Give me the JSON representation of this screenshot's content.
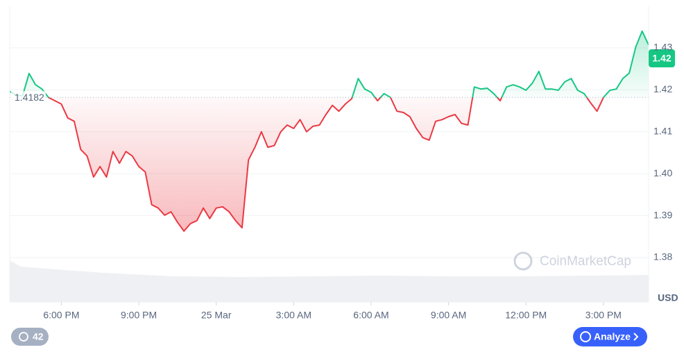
{
  "chart_data": {
    "type": "line",
    "series": [
      {
        "color_up": "#16c784",
        "color_down": "#ea3943",
        "x": [
          0,
          0.25,
          0.5,
          0.75,
          1,
          1.25,
          1.5,
          1.75,
          2,
          2.25,
          2.5,
          2.75,
          3,
          3.25,
          3.5,
          3.75,
          4,
          4.25,
          4.5,
          4.75,
          5,
          5.25,
          5.5,
          5.75,
          6,
          6.25,
          6.5,
          6.75,
          7,
          7.25,
          7.5,
          7.75,
          8,
          8.25,
          8.5,
          8.75,
          9,
          9.25,
          9.5,
          9.75,
          10,
          10.25,
          10.5,
          10.75,
          11,
          11.25,
          11.5,
          11.75,
          12,
          12.25,
          12.5,
          12.75,
          13,
          13.25,
          13.5,
          13.75,
          14,
          14.25,
          14.5,
          14.75,
          15,
          15.25,
          15.5,
          15.75,
          16,
          16.25,
          16.5,
          16.75,
          17,
          17.25,
          17.5,
          17.75,
          18,
          18.25,
          18.5,
          18.75,
          19,
          19.25,
          19.5,
          19.75,
          20,
          20.25,
          20.5,
          20.75,
          21,
          21.25,
          21.5,
          21.75,
          22,
          22.25,
          22.5,
          22.75,
          23,
          23.25,
          23.5,
          23.75,
          24,
          24.25,
          24.5,
          24.75
        ],
        "values": [
          1.4196,
          1.4187,
          1.4186,
          1.4239,
          1.4212,
          1.4202,
          1.4182,
          1.4174,
          1.4166,
          1.4133,
          1.4125,
          1.4058,
          1.4042,
          1.3992,
          1.4017,
          1.3992,
          1.4053,
          1.4025,
          1.4053,
          1.4042,
          1.4017,
          1.4004,
          1.3926,
          1.3918,
          1.3901,
          1.3909,
          1.3884,
          1.3863,
          1.3881,
          1.3888,
          1.3918,
          1.3893,
          1.3918,
          1.3921,
          1.3909,
          1.3888,
          1.3871,
          1.4033,
          1.4063,
          1.41,
          1.4063,
          1.4067,
          1.41,
          1.4116,
          1.4108,
          1.4129,
          1.41,
          1.4113,
          1.4116,
          1.4141,
          1.4163,
          1.4149,
          1.4166,
          1.4179,
          1.4227,
          1.4202,
          1.4194,
          1.4174,
          1.4191,
          1.4182,
          1.4149,
          1.4146,
          1.4136,
          1.4108,
          1.4086,
          1.408,
          1.4125,
          1.4129,
          1.4136,
          1.4141,
          1.412,
          1.4116,
          1.4207,
          1.4202,
          1.4204,
          1.4191,
          1.4174,
          1.4207,
          1.4212,
          1.4207,
          1.4199,
          1.4216,
          1.4244,
          1.4202,
          1.4202,
          1.4199,
          1.4219,
          1.4227,
          1.4199,
          1.4191,
          1.4169,
          1.4149,
          1.4182,
          1.4199,
          1.4202,
          1.4227,
          1.424,
          1.4302,
          1.434,
          1.4307
        ]
      }
    ],
    "baseline": 1.4182,
    "price_badge": "1.42",
    "currency": "USD",
    "watermark": "CoinMarketCap",
    "xlim": [
      0,
      24.75
    ],
    "xticks": [
      {
        "value": 2,
        "label": "6:00 PM"
      },
      {
        "value": 5,
        "label": "9:00 PM"
      },
      {
        "value": 8,
        "label": "25 Mar"
      },
      {
        "value": 11,
        "label": "3:00 AM"
      },
      {
        "value": 14,
        "label": "6:00 AM"
      },
      {
        "value": 17,
        "label": "9:00 AM"
      },
      {
        "value": 20,
        "label": "12:00 PM"
      },
      {
        "value": 23,
        "label": "3:00 PM"
      }
    ],
    "ylim": [
      1.3694,
      1.4401
    ],
    "yticks": [
      1.38,
      1.39,
      {
        "value": 1.4,
        "label": "1.40"
      },
      1.41,
      1.42,
      1.43
    ],
    "grid": true,
    "history_count": "42",
    "analyze_button": "Analyze"
  }
}
